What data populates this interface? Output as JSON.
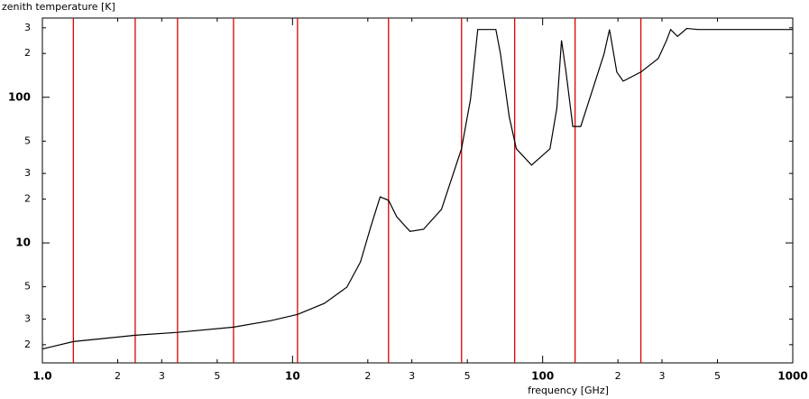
{
  "chart_data": {
    "type": "line",
    "xlabel": "frequency [GHz]",
    "ylabel": "zenith temperature [K]",
    "xscale": "log",
    "yscale": "log",
    "xlim": [
      1,
      1000
    ],
    "ylim": [
      1.5,
      350
    ],
    "xticks": [
      {
        "value": 1,
        "label": "1.0"
      },
      2,
      3,
      5,
      10,
      {
        "value": 20,
        "label": "2"
      },
      {
        "value": 30,
        "label": "3"
      },
      {
        "value": 50,
        "label": "5"
      },
      100,
      {
        "value": 200,
        "label": "2"
      },
      {
        "value": 300,
        "label": "3"
      },
      {
        "value": 500,
        "label": "5"
      },
      1000
    ],
    "yticks": [
      2,
      3,
      5,
      10,
      {
        "value": 20,
        "label": "2"
      },
      {
        "value": 30,
        "label": "3"
      },
      {
        "value": 50,
        "label": "5"
      },
      100,
      {
        "value": 200,
        "label": "2"
      },
      {
        "value": 300,
        "label": "3"
      }
    ],
    "series": [
      {
        "color": "#000000",
        "x": [
          1,
          1.33,
          2.35,
          3.47,
          5.81,
          8.16,
          10.47,
          13.4,
          16.5,
          18.7,
          20.6,
          22.4,
          24.2,
          26.1,
          29.5,
          33.4,
          39.4,
          47.4,
          51.5,
          55,
          65,
          67.8,
          73.6,
          78.5,
          90.3,
          107,
          114,
          119,
          124,
          132,
          142,
          176,
          185,
          198,
          210,
          247,
          290,
          313,
          325,
          346,
          377,
          418,
          1000
        ],
        "values": [
          1.87,
          2.1,
          2.32,
          2.43,
          2.64,
          2.92,
          3.23,
          3.84,
          4.97,
          7.4,
          13.1,
          20.7,
          19.6,
          15.1,
          12.0,
          12.4,
          17.0,
          44.3,
          97,
          292,
          292,
          199,
          73,
          44.3,
          34.2,
          44.3,
          84,
          246,
          149,
          63,
          63,
          199,
          292,
          149,
          129,
          149,
          185,
          246,
          292,
          262,
          297,
          292,
          292
        ]
      }
    ],
    "markers": {
      "color": "#dd0000",
      "x": [
        1.33,
        2.35,
        3.47,
        5.81,
        10.47,
        24.2,
        47.4,
        77.3,
        134.8,
        247
      ]
    }
  }
}
